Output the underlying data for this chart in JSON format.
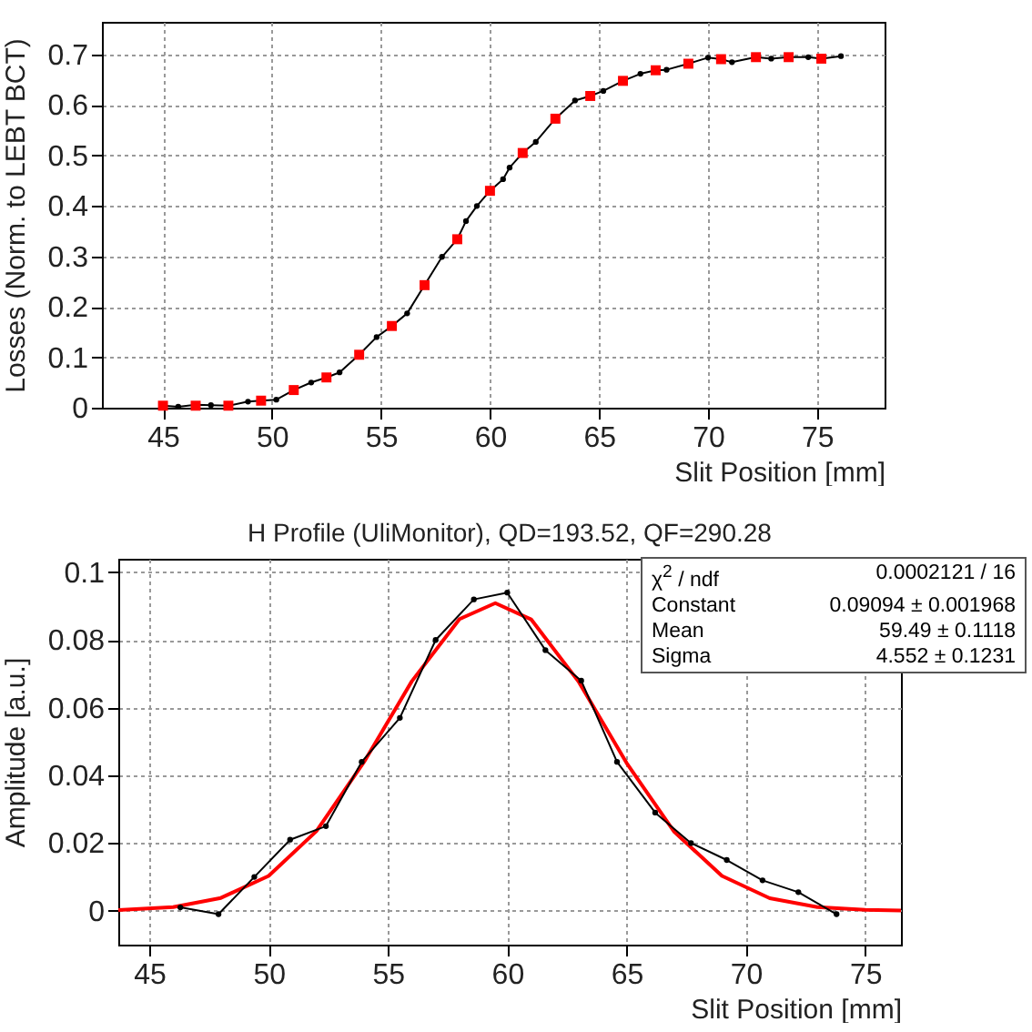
{
  "chart_data": [
    {
      "type": "line",
      "xlabel": "Slit Position [mm]",
      "ylabel": "Losses (Norm. to LEBT BCT)",
      "xlim": [
        42.2,
        78.1
      ],
      "ylim": [
        0,
        0.765
      ],
      "xticks": [
        45,
        50,
        55,
        60,
        65,
        70,
        75
      ],
      "yticks": [
        0,
        0.1,
        0.2,
        0.3,
        0.4,
        0.5,
        0.6,
        0.7
      ],
      "grid": true,
      "series": [
        {
          "type": "line",
          "color": "#000000",
          "marker": "circle",
          "x": [
            45,
            45.7,
            46.5,
            47.2,
            48,
            48.9,
            49.5,
            50.2,
            51,
            51.8,
            52.5,
            53.1,
            54,
            54.8,
            55.5,
            56.2,
            57,
            57.8,
            58.5,
            58.9,
            59.4,
            60,
            60.6,
            60.9,
            61.5,
            62.1,
            63,
            63.9,
            64.6,
            65.2,
            66.1,
            66.9,
            67.6,
            68.1,
            69.1,
            70,
            70.6,
            71.1,
            72.2,
            72.9,
            73.7,
            74.6,
            75.2,
            76.1
          ],
          "values": [
            0.004,
            0.002,
            0.006,
            0.005,
            0.004,
            0.012,
            0.014,
            0.016,
            0.035,
            0.05,
            0.06,
            0.07,
            0.105,
            0.14,
            0.162,
            0.187,
            0.243,
            0.299,
            0.334,
            0.37,
            0.4,
            0.43,
            0.453,
            0.476,
            0.505,
            0.527,
            0.573,
            0.609,
            0.618,
            0.628,
            0.648,
            0.662,
            0.669,
            0.67,
            0.682,
            0.694,
            0.691,
            0.685,
            0.695,
            0.692,
            0.695,
            0.695,
            0.692,
            0.697
          ]
        },
        {
          "type": "scatter",
          "color": "#ff0000",
          "marker": "square",
          "x": [
            45,
            46.5,
            48,
            49.5,
            51,
            52.5,
            54,
            55.5,
            57,
            58.5,
            60,
            61.5,
            63,
            64.6,
            66.1,
            67.6,
            69.1,
            70.6,
            72.2,
            73.7,
            75.2
          ],
          "values": [
            0.004,
            0.004,
            0.004,
            0.014,
            0.035,
            0.06,
            0.105,
            0.162,
            0.243,
            0.334,
            0.43,
            0.505,
            0.573,
            0.618,
            0.648,
            0.669,
            0.682,
            0.691,
            0.695,
            0.695,
            0.692
          ]
        }
      ]
    },
    {
      "type": "line",
      "title": "H Profile (UliMonitor), QD=193.52, QF=290.28",
      "xlabel": "Slit Position [mm]",
      "ylabel": "Amplitude [a.u.]",
      "xlim": [
        43.7,
        76.5
      ],
      "ylim": [
        -0.01,
        0.104
      ],
      "xticks": [
        45,
        50,
        55,
        60,
        65,
        70,
        75
      ],
      "yticks": [
        0,
        0.02,
        0.04,
        0.06,
        0.08,
        0.1
      ],
      "grid": true,
      "annotations": [
        "χ$^{2}$ / ndf",
        "0.0002121 / 16",
        "Constant",
        "0.09094 ± 0.001968",
        "Mean",
        "59.49 ± 0.1118",
        "Sigma",
        "4.552 ± 0.1231"
      ],
      "series": [
        {
          "type": "line",
          "color": "#ff0000",
          "marker": "none",
          "x": [
            43.7,
            46,
            48,
            50,
            52,
            54,
            56,
            58,
            59.5,
            61,
            63,
            65,
            67,
            69,
            71,
            73,
            75,
            76.5
          ],
          "values": [
            0.0002,
            0.0011,
            0.0038,
            0.0103,
            0.0235,
            0.044,
            0.0678,
            0.0862,
            0.0909,
            0.0861,
            0.0676,
            0.0437,
            0.0233,
            0.0103,
            0.0037,
            0.0011,
            0.0003,
            0.0001
          ]
        },
        {
          "type": "line",
          "color": "#000000",
          "marker": "circle",
          "x": [
            46.3,
            47.9,
            49.4,
            50.9,
            52.4,
            53.9,
            55.5,
            57.0,
            58.6,
            60.0,
            61.6,
            63.1,
            64.6,
            66.2,
            67.7,
            69.2,
            70.7,
            72.2,
            73.8
          ],
          "values": [
            0.001,
            -0.001,
            0.01,
            0.021,
            0.025,
            0.044,
            0.057,
            0.08,
            0.092,
            0.094,
            0.077,
            0.068,
            0.044,
            0.029,
            0.02,
            0.015,
            0.009,
            0.0055,
            -0.001
          ]
        }
      ]
    }
  ]
}
